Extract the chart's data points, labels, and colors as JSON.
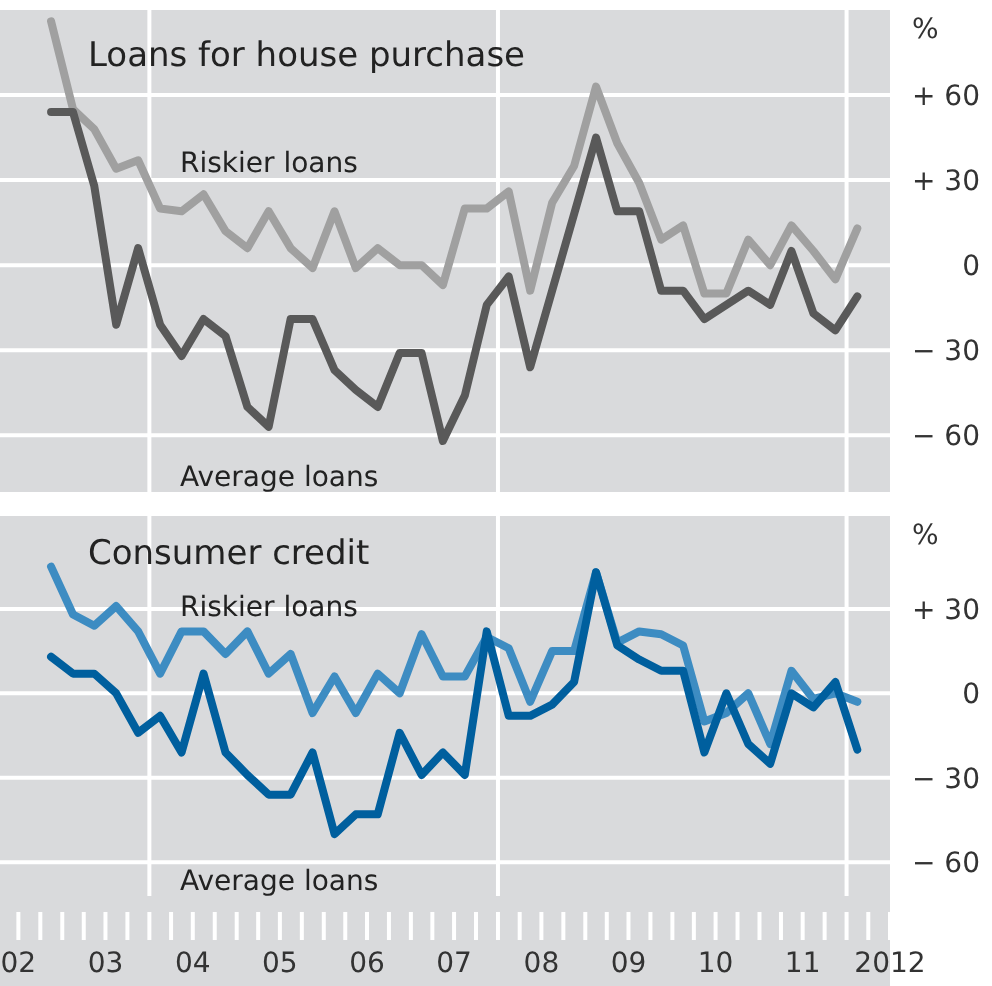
{
  "chart_data": [
    {
      "type": "line",
      "title": "Loans for house purchase",
      "ylabel": "%",
      "x": [
        "2002-11-15",
        "2003-02-15",
        "2003-05-15",
        "2003-08-15",
        "2003-11-15",
        "2004-02-15",
        "2004-05-15",
        "2004-08-15",
        "2004-11-15",
        "2005-02-15",
        "2005-05-15",
        "2005-08-15",
        "2005-11-15",
        "2006-02-15",
        "2006-05-15",
        "2006-08-15",
        "2006-11-15",
        "2007-02-15",
        "2007-05-15",
        "2007-08-15",
        "2007-11-15",
        "2008-02-15",
        "2008-05-15",
        "2008-08-15",
        "2008-11-15",
        "2009-02-15",
        "2009-05-15",
        "2009-08-15",
        "2009-11-15",
        "2010-02-15",
        "2010-05-15",
        "2010-08-15",
        "2010-11-15",
        "2011-02-15",
        "2011-05-15",
        "2011-08-15",
        "2011-11-15",
        "2012-02-15"
      ],
      "series": [
        {
          "name": "Riskier loans",
          "color": "#a0a0a0",
          "values": [
            86,
            55,
            48,
            34,
            37,
            20,
            19,
            25,
            12,
            6,
            19,
            6,
            -1,
            19,
            -1,
            6,
            0,
            0,
            -7,
            20,
            20,
            26,
            -9,
            22,
            35,
            63,
            43,
            29,
            9,
            14,
            -10,
            -10,
            9,
            0,
            14,
            5,
            -5,
            13
          ]
        },
        {
          "name": "Average loans",
          "color": "#595959",
          "values": [
            54,
            54,
            28,
            -21,
            6,
            -21,
            -32,
            -19,
            -25,
            -50,
            -57,
            -19,
            -19,
            -37,
            -44,
            -50,
            -31,
            -31,
            -62,
            -46,
            -14,
            -4,
            -36,
            -9,
            18,
            45,
            19,
            19,
            -9,
            -9,
            -19,
            -14,
            -9,
            -14,
            5,
            -17,
            -23,
            -11
          ]
        }
      ],
      "xlim": [
        "2002-04-15",
        "2012-07-01"
      ],
      "ylim": [
        -80,
        90
      ],
      "yticks": [
        {
          "value": -60,
          "label": "− 60"
        },
        {
          "value": -30,
          "label": "− 30"
        },
        0,
        {
          "value": 30,
          "label": "+ 30"
        },
        {
          "value": 60,
          "label": "+ 60"
        }
      ],
      "grid": "y",
      "tick_labels": "y",
      "ref_lines": [
        {
          "axis": "x",
          "value": "2004-01-01",
          "color": "#ffffff"
        },
        {
          "axis": "x",
          "value": "2008-01-01",
          "color": "#ffffff"
        },
        {
          "axis": "x",
          "value": "2012-01-01",
          "color": "#ffffff"
        }
      ]
    },
    {
      "type": "line",
      "title": "Consumer credit",
      "ylabel": "%",
      "x": [
        "2002-11-15",
        "2003-02-15",
        "2003-05-15",
        "2003-08-15",
        "2003-11-15",
        "2004-02-15",
        "2004-05-15",
        "2004-08-15",
        "2004-11-15",
        "2005-02-15",
        "2005-05-15",
        "2005-08-15",
        "2005-11-15",
        "2006-02-15",
        "2006-05-15",
        "2006-08-15",
        "2006-11-15",
        "2007-02-15",
        "2007-05-15",
        "2007-08-15",
        "2007-11-15",
        "2008-02-15",
        "2008-05-15",
        "2008-08-15",
        "2008-11-15",
        "2009-02-15",
        "2009-05-15",
        "2009-08-15",
        "2009-11-15",
        "2010-02-15",
        "2010-05-15",
        "2010-08-15",
        "2010-11-15",
        "2011-02-15",
        "2011-05-15",
        "2011-08-15",
        "2011-11-15",
        "2012-02-15"
      ],
      "series": [
        {
          "name": "Riskier loans",
          "color": "#3d8cc2",
          "values": [
            45,
            28,
            24,
            31,
            22,
            7,
            22,
            22,
            14,
            22,
            7,
            14,
            -7,
            6,
            -7,
            7,
            0,
            21,
            6,
            6,
            20,
            16,
            -3,
            15,
            15,
            43,
            18,
            22,
            21,
            17,
            -10,
            -7,
            0,
            -18,
            8,
            -2,
            0,
            -3
          ]
        },
        {
          "name": "Average loans",
          "color": "#005f9e",
          "values": [
            13,
            7,
            7,
            0,
            -14,
            -8,
            -21,
            7,
            -21,
            -29,
            -36,
            -36,
            -21,
            -50,
            -43,
            -43,
            -14,
            -29,
            -21,
            -29,
            22,
            -8,
            -8,
            -4,
            4,
            43,
            17,
            12,
            8,
            8,
            -21,
            0,
            -18,
            -25,
            0,
            -5,
            4,
            -20
          ]
        }
      ],
      "xlim": [
        "2002-04-15",
        "2012-07-01"
      ],
      "xticks": [
        {
          "value": "2002-07",
          "label": "02"
        },
        {
          "value": "2002-10",
          "label": null
        },
        {
          "value": "2003-01",
          "label": null
        },
        {
          "value": "2003-04",
          "label": null
        },
        {
          "value": "2003-07",
          "label": "03"
        },
        {
          "value": "2003-10",
          "label": null
        },
        {
          "value": "2004-01",
          "label": null
        },
        {
          "value": "2004-04",
          "label": null
        },
        {
          "value": "2004-07",
          "label": "04"
        },
        {
          "value": "2004-10",
          "label": null
        },
        {
          "value": "2005-01",
          "label": null
        },
        {
          "value": "2005-04",
          "label": null
        },
        {
          "value": "2005-07",
          "label": "05"
        },
        {
          "value": "2005-10",
          "label": null
        },
        {
          "value": "2006-01",
          "label": null
        },
        {
          "value": "2006-04",
          "label": null
        },
        {
          "value": "2006-07",
          "label": "06"
        },
        {
          "value": "2006-10",
          "label": null
        },
        {
          "value": "2007-01",
          "label": null
        },
        {
          "value": "2007-04",
          "label": null
        },
        {
          "value": "2007-07",
          "label": "07"
        },
        {
          "value": "2007-10",
          "label": null
        },
        {
          "value": "2008-01",
          "label": null
        },
        {
          "value": "2008-04",
          "label": null
        },
        {
          "value": "2008-07",
          "label": "08"
        },
        {
          "value": "2008-10",
          "label": null
        },
        {
          "value": "2009-01",
          "label": null
        },
        {
          "value": "2009-04",
          "label": null
        },
        {
          "value": "2009-07",
          "label": "09"
        },
        {
          "value": "2009-10",
          "label": null
        },
        {
          "value": "2010-01",
          "label": null
        },
        {
          "value": "2010-04",
          "label": null
        },
        {
          "value": "2010-07",
          "label": "10"
        },
        {
          "value": "2010-10",
          "label": null
        },
        {
          "value": "2011-01",
          "label": null
        },
        {
          "value": "2011-04",
          "label": null
        },
        {
          "value": "2011-07",
          "label": "11"
        },
        {
          "value": "2011-10",
          "label": null
        },
        {
          "value": "2012-01",
          "label": null
        },
        {
          "value": "2012-04",
          "label": null
        },
        {
          "value": "2012-07",
          "label": "2012"
        }
      ],
      "ylim": [
        -72,
        63
      ],
      "yticks": [
        {
          "value": -60,
          "label": "− 60"
        },
        {
          "value": -30,
          "label": "− 30"
        },
        0,
        {
          "value": 30,
          "label": "+ 30"
        }
      ],
      "grid": "y",
      "ref_lines": [
        {
          "axis": "x",
          "value": "2004-01-01",
          "color": "#ffffff"
        },
        {
          "axis": "x",
          "value": "2008-01-01",
          "color": "#ffffff"
        },
        {
          "axis": "x",
          "value": "2012-01-01",
          "color": "#ffffff"
        }
      ]
    }
  ]
}
